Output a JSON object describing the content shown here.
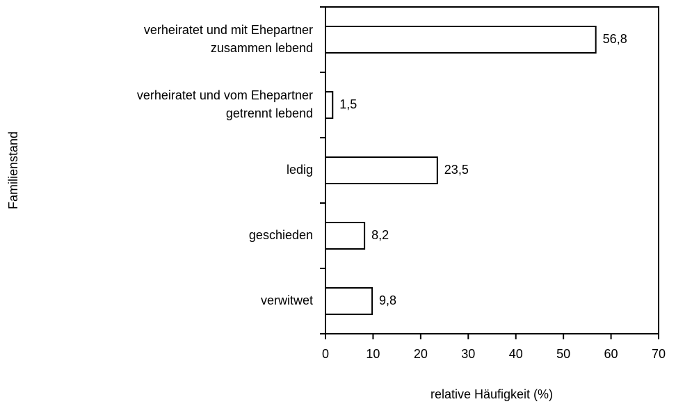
{
  "chart_data": {
    "type": "bar",
    "orientation": "horizontal",
    "categories": [
      [
        "verheiratet und mit Ehepartner",
        "zusammen lebend"
      ],
      [
        "verheiratet und vom Ehepartner",
        "getrennt lebend"
      ],
      [
        "ledig"
      ],
      [
        "geschieden"
      ],
      [
        "verwitwet"
      ]
    ],
    "values": [
      56.8,
      1.5,
      23.5,
      8.2,
      9.8
    ],
    "value_labels": [
      "56,8",
      "1,5",
      "23,5",
      "8,2",
      "9,8"
    ],
    "color": "#ffffff",
    "xlabel": "relative Häufigkeit (%)",
    "ylabel": "Familienstand",
    "xlim": [
      0,
      70
    ],
    "xticks": [
      0,
      10,
      20,
      30,
      40,
      50,
      60,
      70
    ],
    "grid": false
  }
}
